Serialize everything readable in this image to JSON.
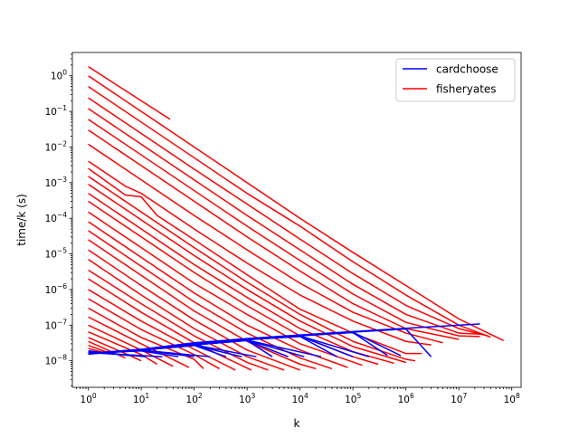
{
  "chart_data": {
    "type": "line",
    "xscale": "log",
    "yscale": "log",
    "xlabel": "k",
    "ylabel": "time/k (s)",
    "xlim": [
      0.5,
      150000000
    ],
    "ylim": [
      1.8e-09,
      4.5
    ],
    "grid": false,
    "legend_position": "top-right",
    "x_ticks": [
      {
        "value": 1,
        "base": "10",
        "exp": "0"
      },
      {
        "value": 10,
        "base": "10",
        "exp": "1"
      },
      {
        "value": 100,
        "base": "10",
        "exp": "2"
      },
      {
        "value": 1000,
        "base": "10",
        "exp": "3"
      },
      {
        "value": 10000,
        "base": "10",
        "exp": "4"
      },
      {
        "value": 100000,
        "base": "10",
        "exp": "5"
      },
      {
        "value": 1000000,
        "base": "10",
        "exp": "6"
      },
      {
        "value": 10000000,
        "base": "10",
        "exp": "7"
      },
      {
        "value": 100000000,
        "base": "10",
        "exp": "8"
      }
    ],
    "y_ticks": [
      {
        "value": 1e-08,
        "base": "10",
        "exp": "−8"
      },
      {
        "value": 1e-07,
        "base": "10",
        "exp": "−7"
      },
      {
        "value": 1e-06,
        "base": "10",
        "exp": "−6"
      },
      {
        "value": 1e-05,
        "base": "10",
        "exp": "−5"
      },
      {
        "value": 0.0001,
        "base": "10",
        "exp": "−4"
      },
      {
        "value": 0.001,
        "base": "10",
        "exp": "−3"
      },
      {
        "value": 0.01,
        "base": "10",
        "exp": "−2"
      },
      {
        "value": 0.1,
        "base": "10",
        "exp": "−1"
      },
      {
        "value": 1,
        "base": "10",
        "exp": "0"
      }
    ],
    "series": [
      {
        "name": "cardchoose",
        "color": "#0000ff",
        "description_of_family": "near-flat lines rising from ~1.6e-8 at k=1 to ~1e-7 at k~2.5e7, each family member ends with a short drop near its n",
        "lines": [
          {
            "x": [
              1,
              10,
              100,
              1000,
              10000,
              100000,
              1000000,
              25000000
            ],
            "y": [
              1.6e-08,
              2.1e-08,
              3.2e-08,
              4.2e-08,
              5.3e-08,
              6.6e-08,
              8.2e-08,
              1.08e-07
            ]
          },
          {
            "x": [
              1,
              10,
              100,
              1000,
              10000,
              100000,
              1000000,
              3000000
            ],
            "y": [
              1.55e-08,
              2e-08,
              3.1e-08,
              4.1e-08,
              5.2e-08,
              6.4e-08,
              7.8e-08,
              1.3e-08
            ]
          },
          {
            "x": [
              1,
              10,
              100,
              1000,
              10000,
              100000,
              800000
            ],
            "y": [
              1.6e-08,
              2.1e-08,
              3.1e-08,
              4.1e-08,
              5.1e-08,
              6.3e-08,
              1.4e-08
            ]
          },
          {
            "x": [
              1,
              10,
              100,
              1000,
              10000,
              100000,
              450000
            ],
            "y": [
              1.6e-08,
              2.05e-08,
              3e-08,
              4e-08,
              5e-08,
              6.2e-08,
              1.4e-08
            ]
          },
          {
            "x": [
              1,
              10,
              100,
              1000,
              10000,
              200000
            ],
            "y": [
              1.6e-08,
              2e-08,
              3e-08,
              4e-08,
              5e-08,
              1.3e-08
            ]
          },
          {
            "x": [
              1,
              10,
              100,
              1000,
              10000,
              100000
            ],
            "y": [
              1.55e-08,
              2e-08,
              3e-08,
              3.9e-08,
              4.9e-08,
              1.3e-08
            ]
          },
          {
            "x": [
              1,
              10,
              100,
              1000,
              10000,
              50000
            ],
            "y": [
              1.6e-08,
              2e-08,
              2.9e-08,
              3.9e-08,
              4.8e-08,
              1.3e-08
            ]
          },
          {
            "x": [
              1,
              10,
              100,
              1000,
              25000
            ],
            "y": [
              1.6e-08,
              2e-08,
              2.9e-08,
              3.8e-08,
              1.3e-08
            ]
          },
          {
            "x": [
              1,
              10,
              100,
              1000,
              12000
            ],
            "y": [
              1.6e-08,
              2e-08,
              2.9e-08,
              3.8e-08,
              1.3e-08
            ]
          },
          {
            "x": [
              1,
              10,
              100,
              1000,
              6000
            ],
            "y": [
              1.6e-08,
              2e-08,
              2.8e-08,
              3.7e-08,
              1.3e-08
            ]
          },
          {
            "x": [
              1,
              10,
              100,
              1000,
              3000
            ],
            "y": [
              1.6e-08,
              2e-08,
              2.8e-08,
              3.7e-08,
              1.3e-08
            ]
          },
          {
            "x": [
              1,
              10,
              100,
              1500
            ],
            "y": [
              1.6e-08,
              2e-08,
              2.8e-08,
              1.3e-08
            ]
          },
          {
            "x": [
              1,
              10,
              100,
              800
            ],
            "y": [
              1.6e-08,
              2e-08,
              2.7e-08,
              1.3e-08
            ]
          },
          {
            "x": [
              1,
              10,
              100,
              400
            ],
            "y": [
              1.6e-08,
              2e-08,
              2.7e-08,
              1.3e-08
            ]
          },
          {
            "x": [
              1,
              10,
              200
            ],
            "y": [
              1.6e-08,
              2e-08,
              1.3e-08
            ]
          },
          {
            "x": [
              1,
              10,
              100
            ],
            "y": [
              1.6e-08,
              2e-08,
              1.3e-08
            ]
          },
          {
            "x": [
              1,
              10,
              50
            ],
            "y": [
              1.6e-08,
              1.9e-08,
              1.3e-08
            ]
          },
          {
            "x": [
              1,
              25
            ],
            "y": [
              1.7e-08,
              1.3e-08
            ]
          },
          {
            "x": [
              1,
              12
            ],
            "y": [
              1.8e-08,
              1.3e-08
            ]
          },
          {
            "x": [
              1,
              6
            ],
            "y": [
              1.9e-08,
              1.4e-08
            ]
          }
        ]
      },
      {
        "name": "fisheryates",
        "color": "#ff0000",
        "description_of_family": "steeply descending lines, one per problem size n; each starts at k=1 and flattens to ~5e-9..5e-8 near k=n",
        "lines": [
          {
            "x": [
              1,
              35
            ],
            "y": [
              1.8,
              0.06
            ]
          },
          {
            "x": [
              1,
              10,
              100,
              1000,
              10000,
              100000,
              1000000,
              10000000,
              70000000
            ],
            "y": [
              1.0,
              0.1,
              0.01,
              0.001,
              0.0001,
              1.1e-05,
              1.3e-06,
              1.5e-07,
              3.7e-08
            ]
          },
          {
            "x": [
              1,
              10,
              100,
              1000,
              10000,
              100000,
              1000000,
              10000000,
              40000000
            ],
            "y": [
              0.5,
              0.05,
              0.005,
              0.0005,
              6e-05,
              6e-06,
              7e-07,
              1e-07,
              4.6e-08
            ]
          },
          {
            "x": [
              1,
              10,
              100,
              1000,
              10000,
              100000,
              1000000,
              10000000,
              35000000
            ],
            "y": [
              0.24,
              0.024,
              0.0024,
              0.00025,
              2.6e-05,
              2.8e-06,
              3.6e-07,
              8e-08,
              5e-08
            ]
          },
          {
            "x": [
              1,
              10,
              100,
              1000,
              10000,
              100000,
              1000000,
              10000000,
              30000000
            ],
            "y": [
              0.12,
              0.012,
              0.0012,
              0.00012,
              1.3e-05,
              1.4e-06,
              2e-07,
              6e-08,
              5.5e-08
            ]
          },
          {
            "x": [
              1,
              10,
              100,
              1000,
              10000,
              100000,
              1000000,
              10000000,
              25000000
            ],
            "y": [
              0.06,
              0.006,
              0.0006,
              6e-05,
              6.5e-06,
              7.5e-07,
              1.2e-07,
              5e-08,
              4.8e-08
            ]
          },
          {
            "x": [
              1,
              10,
              100,
              1000,
              10000,
              100000,
              1000000,
              10000000
            ],
            "y": [
              0.03,
              0.003,
              0.0003,
              3e-05,
              3.3e-06,
              4e-07,
              8e-08,
              4e-08
            ]
          },
          {
            "x": [
              1,
              10,
              100,
              1000,
              10000,
              100000,
              1000000,
              5000000
            ],
            "y": [
              0.012,
              0.0012,
              0.00012,
              1.3e-05,
              1.5e-06,
              2.3e-07,
              6e-08,
              3.2e-08
            ]
          },
          {
            "x": [
              1,
              5,
              10,
              100,
              1000,
              10000,
              100000,
              1000000,
              3000000
            ],
            "y": [
              0.004,
              0.0008,
              0.0005,
              5e-05,
              5.5e-06,
              7e-07,
              1.3e-07,
              3.5e-08,
              2.8e-08
            ]
          },
          {
            "x": [
              1,
              5,
              10,
              20,
              100,
              1000,
              10000,
              100000,
              1000000,
              2000000
            ],
            "y": [
              0.0025,
              0.00045,
              0.0004,
              0.00012,
              2.5e-05,
              2.6e-06,
              2.8e-07,
              6e-08,
              1.6e-08,
              1.6e-08
            ]
          },
          {
            "x": [
              1,
              10,
              100,
              1000,
              10000,
              100000,
              1000000,
              1500000
            ],
            "y": [
              0.0015,
              0.00015,
              1.5e-05,
              1.6e-06,
              2e-07,
              3.5e-08,
              1.1e-08,
              1e-08
            ]
          },
          {
            "x": [
              1,
              10,
              100,
              1000,
              10000,
              100000,
              1000000
            ],
            "y": [
              0.0009,
              9e-05,
              9e-06,
              1e-06,
              1.3e-07,
              2.5e-08,
              9e-09
            ]
          },
          {
            "x": [
              1,
              10,
              100,
              1000,
              10000,
              100000,
              600000
            ],
            "y": [
              0.0005,
              5e-05,
              5e-06,
              6e-07,
              8e-08,
              1.8e-08,
              8.5e-09
            ]
          },
          {
            "x": [
              1,
              10,
              100,
              1000,
              10000,
              100000,
              300000
            ],
            "y": [
              0.0003,
              3e-05,
              3e-06,
              3.5e-07,
              5e-08,
              1.3e-08,
              8e-09
            ]
          },
          {
            "x": [
              1,
              10,
              100,
              1000,
              10000,
              150000
            ],
            "y": [
              0.00015,
              1.5e-05,
              1.5e-06,
              2e-07,
              3e-08,
              7.5e-09
            ]
          },
          {
            "x": [
              1,
              10,
              100,
              1000,
              10000,
              80000
            ],
            "y": [
              8e-05,
              8e-06,
              8e-07,
              1e-07,
              2e-08,
              6.5e-09
            ]
          },
          {
            "x": [
              1,
              10,
              100,
              1000,
              10000,
              40000
            ],
            "y": [
              4.5e-05,
              4.5e-06,
              4.5e-07,
              6e-08,
              1.2e-08,
              6e-09
            ]
          },
          {
            "x": [
              1,
              10,
              100,
              1000,
              10000,
              20000
            ],
            "y": [
              2.5e-05,
              2.5e-06,
              2.5e-07,
              3.5e-08,
              8e-09,
              6e-09
            ]
          },
          {
            "x": [
              1,
              10,
              100,
              1000,
              10000
            ],
            "y": [
              1.3e-05,
              1.3e-06,
              1.4e-07,
              2e-08,
              5.5e-09
            ]
          },
          {
            "x": [
              1,
              10,
              100,
              1000,
              5000
            ],
            "y": [
              7e-06,
              7e-07,
              8e-08,
              1.3e-08,
              5.5e-09
            ]
          },
          {
            "x": [
              1,
              10,
              100,
              1000,
              2500
            ],
            "y": [
              3.5e-06,
              4e-07,
              5e-08,
              9e-09,
              5.5e-09
            ]
          },
          {
            "x": [
              1,
              10,
              100,
              1200
            ],
            "y": [
              2e-06,
              2.3e-07,
              3.2e-08,
              5.5e-09
            ]
          },
          {
            "x": [
              1,
              10,
              100,
              600
            ],
            "y": [
              1e-06,
              1.3e-07,
              2.1e-08,
              5.5e-09
            ]
          },
          {
            "x": [
              1,
              10,
              100,
              300
            ],
            "y": [
              5.5e-07,
              7.5e-08,
              1.5e-08,
              6e-09
            ]
          },
          {
            "x": [
              1,
              10,
              100,
              150
            ],
            "y": [
              3e-07,
              4.5e-08,
              1.1e-08,
              6e-09
            ]
          },
          {
            "x": [
              1,
              10,
              80
            ],
            "y": [
              1.7e-07,
              3e-08,
              6.5e-09
            ]
          },
          {
            "x": [
              1,
              10,
              40
            ],
            "y": [
              1e-07,
              2e-08,
              7e-09
            ]
          },
          {
            "x": [
              1,
              10,
              20
            ],
            "y": [
              6.5e-08,
              1.5e-08,
              8e-09
            ]
          },
          {
            "x": [
              1,
              5,
              10
            ],
            "y": [
              4.5e-08,
              1.6e-08,
              1e-08
            ]
          },
          {
            "x": [
              1,
              5
            ],
            "y": [
              3.5e-08,
              1.2e-08
            ]
          },
          {
            "x": [
              1,
              3
            ],
            "y": [
              2.7e-08,
              1.5e-08
            ]
          },
          {
            "x": [
              1,
              2
            ],
            "y": [
              2.2e-08,
              1.7e-08
            ]
          }
        ]
      }
    ]
  }
}
